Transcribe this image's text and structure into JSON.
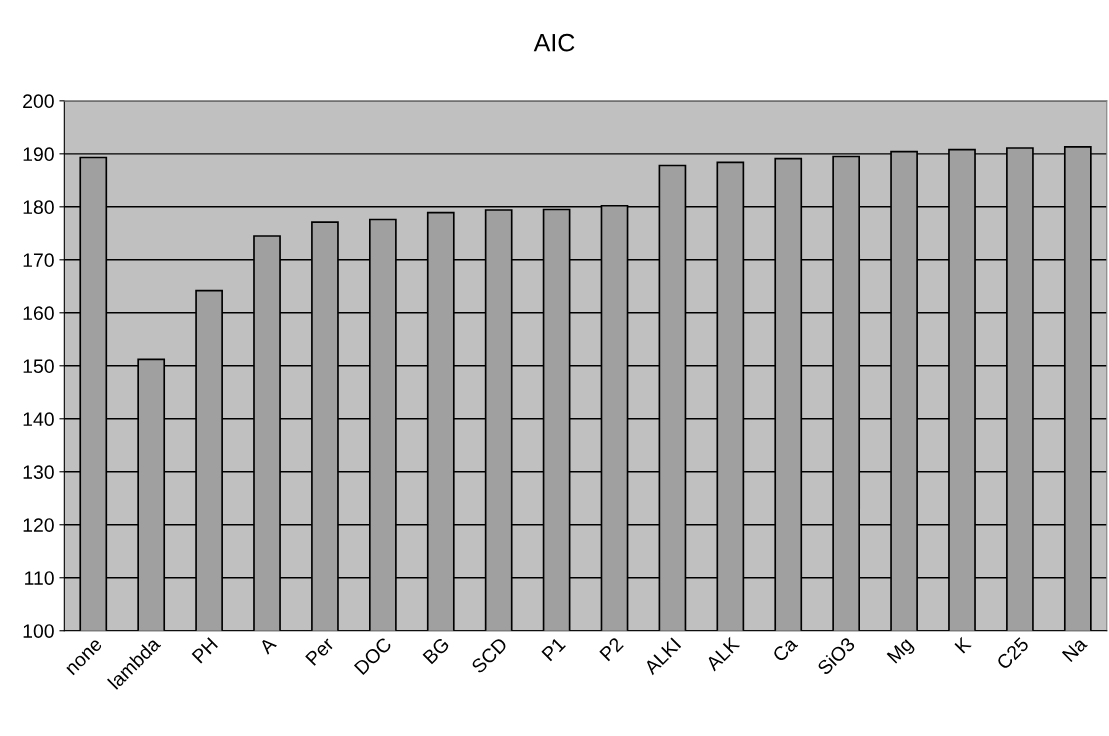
{
  "chart_data": {
    "type": "bar",
    "title": "AIC",
    "categories": [
      "none",
      "lambda",
      "PH",
      "A",
      "Per",
      "DOC",
      "BG",
      "SCD",
      "P1",
      "P2",
      "ALKI",
      "ALK",
      "Ca",
      "SiO3",
      "Mg",
      "K",
      "C25",
      "Na"
    ],
    "values": [
      189.3,
      151.2,
      164.2,
      174.5,
      177.1,
      177.6,
      178.9,
      179.4,
      179.5,
      180.2,
      187.8,
      188.4,
      189.1,
      189.5,
      190.4,
      190.8,
      191.1,
      191.3
    ],
    "color": "#a0a0a0",
    "ylim": [
      100,
      200
    ],
    "yticks": [
      100,
      110,
      120,
      130,
      140,
      150,
      160,
      170,
      180,
      190,
      200
    ],
    "grid": "y"
  }
}
